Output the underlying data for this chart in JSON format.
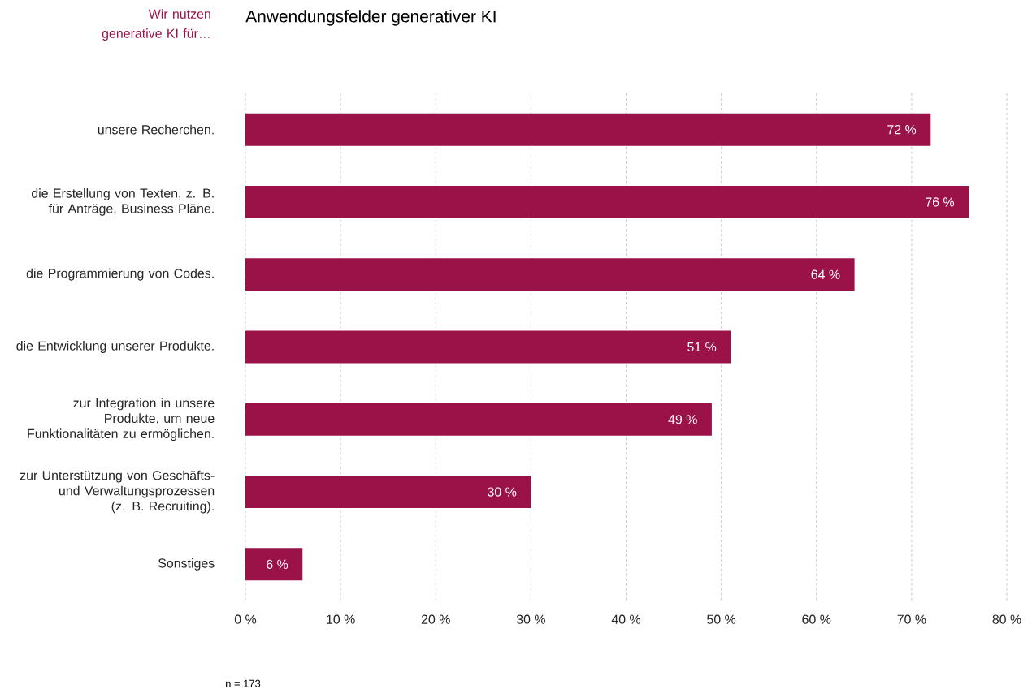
{
  "chart_data": {
    "type": "bar",
    "orientation": "horizontal",
    "title": "Anwendungsfelder generativer KI",
    "ylabel": "Wir nutzen generative KI für…",
    "categories": [
      "unsere Recherchen.",
      "die Erstellung von Texten, z. B. für Anträge, Business Pläne.",
      "die Programmierung von Codes.",
      "die Entwicklung unserer Produkte.",
      "zur Integration in unsere Produkte, um neue Funktionalitäten zu ermöglichen.",
      "zur Unterstützung von Geschäfts- und Verwaltungsprozessen (z. B. Recruiting).",
      "Sonstiges"
    ],
    "values": [
      72,
      76,
      64,
      51,
      49,
      30,
      6
    ],
    "value_labels": [
      "72 %",
      "76 %",
      "64 %",
      "51 %",
      "49 %",
      "30 %",
      "6 %"
    ],
    "color": "#9b1249",
    "xlim": [
      0,
      80
    ],
    "xticks": [
      {
        "value": 0,
        "label": "0 %"
      },
      {
        "value": 10,
        "label": "10 %"
      },
      {
        "value": 20,
        "label": "20 %"
      },
      {
        "value": 30,
        "label": "30 %"
      },
      {
        "value": 40,
        "label": "40 %"
      },
      {
        "value": 50,
        "label": "50 %"
      },
      {
        "value": 60,
        "label": "60 %"
      },
      {
        "value": 70,
        "label": "70 %"
      },
      {
        "value": 80,
        "label": "80 %"
      }
    ],
    "grid": "x",
    "annotations": [
      "n = 173"
    ]
  }
}
